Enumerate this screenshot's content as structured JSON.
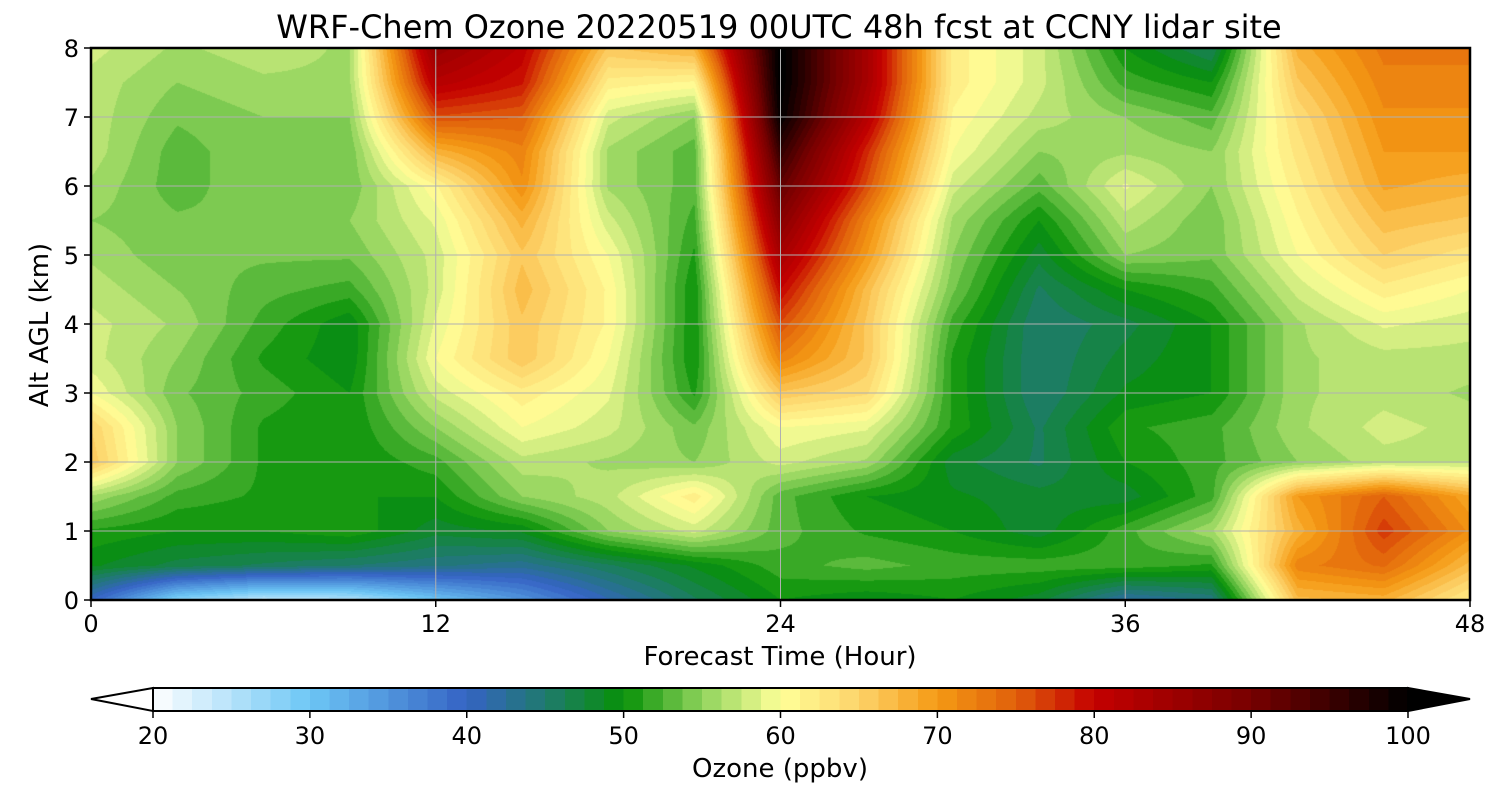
{
  "chart_data": {
    "type": "heatmap",
    "subtype": "filled-contour time-height",
    "title": "WRF-Chem Ozone  20220519 00UTC 48h fcst at CCNY lidar site",
    "xlabel": "Forecast Time (Hour)",
    "ylabel": "Alt AGL (km)",
    "xlim": [
      0,
      48
    ],
    "ylim": [
      0,
      8
    ],
    "x_ticks": [
      0,
      12,
      24,
      36,
      48
    ],
    "y_ticks": [
      0,
      1,
      2,
      3,
      4,
      5,
      6,
      7,
      8
    ],
    "grid": true,
    "colorbar": {
      "label": "Ozone  (ppbv)",
      "range": [
        20,
        100
      ],
      "ticks": [
        20,
        30,
        40,
        50,
        60,
        70,
        80,
        90,
        100
      ],
      "extend": "both",
      "orientation": "horizontal",
      "placement": "bottom",
      "stops": [
        {
          "v": 20,
          "color": "#ffffff"
        },
        {
          "v": 30,
          "color": "#6cc6f5"
        },
        {
          "v": 40,
          "color": "#3563c4"
        },
        {
          "v": 45,
          "color": "#1f7a6e"
        },
        {
          "v": 50,
          "color": "#079107"
        },
        {
          "v": 55,
          "color": "#8fd35c"
        },
        {
          "v": 60,
          "color": "#ffff99"
        },
        {
          "v": 65,
          "color": "#fdd36a"
        },
        {
          "v": 70,
          "color": "#f59a14"
        },
        {
          "v": 75,
          "color": "#e0600b"
        },
        {
          "v": 80,
          "color": "#c40000"
        },
        {
          "v": 90,
          "color": "#770000"
        },
        {
          "v": 100,
          "color": "#000000"
        }
      ]
    },
    "x_hours": [
      0,
      3,
      6,
      9,
      12,
      15,
      18,
      21,
      24,
      27,
      30,
      33,
      36,
      39,
      42,
      45,
      48
    ],
    "y_km": [
      0,
      0.5,
      1,
      1.5,
      2,
      2.5,
      3,
      3.5,
      4,
      4.5,
      5,
      5.5,
      6,
      6.5,
      7,
      7.5,
      8
    ],
    "z_ppbv": [
      [
        40,
        28,
        24,
        25,
        30,
        35,
        41,
        46,
        50,
        49,
        50,
        48,
        42,
        44,
        67,
        68,
        62
      ],
      [
        49,
        47,
        46,
        45,
        44,
        43,
        46,
        49,
        52,
        53,
        52,
        52,
        52,
        51,
        72,
        74,
        67
      ],
      [
        51,
        50,
        50,
        51,
        48,
        49,
        55,
        58,
        53,
        51,
        50,
        48,
        52,
        56,
        68,
        77,
        71
      ],
      [
        56,
        52,
        51,
        50,
        50,
        55,
        57,
        62,
        53,
        50,
        49,
        48,
        48,
        52,
        70,
        75,
        69
      ],
      [
        66,
        55,
        51,
        50,
        52,
        57,
        56,
        55,
        58,
        56,
        48,
        46,
        50,
        52,
        55,
        57,
        57
      ],
      [
        65,
        55,
        51,
        50,
        55,
        60,
        58,
        54,
        60,
        59,
        51,
        46,
        51,
        52,
        56,
        58,
        57
      ],
      [
        60,
        54,
        52,
        50,
        58,
        62,
        59,
        51,
        66,
        64,
        51,
        45,
        49,
        50,
        56,
        57,
        56
      ],
      [
        58,
        55,
        51,
        49,
        60,
        66,
        60,
        50,
        72,
        66,
        51,
        45,
        48,
        50,
        56,
        57,
        57
      ],
      [
        58,
        56,
        52,
        49,
        59,
        66,
        61,
        50,
        76,
        66,
        52,
        45,
        47,
        50,
        56,
        59,
        58
      ],
      [
        57,
        55,
        53,
        52,
        58,
        67,
        61,
        50,
        80,
        67,
        54,
        46,
        50,
        52,
        58,
        62,
        60
      ],
      [
        56,
        54,
        54,
        54,
        58,
        66,
        60,
        51,
        84,
        70,
        55,
        48,
        55,
        54,
        60,
        65,
        63
      ],
      [
        55,
        54,
        54,
        55,
        59,
        68,
        58,
        52,
        88,
        72,
        56,
        50,
        57,
        54,
        61,
        67,
        66
      ],
      [
        56,
        53,
        55,
        54,
        61,
        71,
        56,
        53,
        92,
        76,
        58,
        53,
        59,
        55,
        62,
        69,
        68
      ],
      [
        57,
        53,
        55,
        54,
        68,
        72,
        56,
        53,
        96,
        78,
        60,
        55,
        56,
        55,
        63,
        70,
        70
      ],
      [
        57,
        54,
        55,
        55,
        76,
        75,
        58,
        55,
        100,
        82,
        61,
        57,
        55,
        53,
        64,
        71,
        71
      ],
      [
        57,
        55,
        56,
        56,
        82,
        79,
        62,
        61,
        101,
        84,
        62,
        58,
        52,
        50,
        66,
        72,
        72
      ],
      [
        58,
        56,
        57,
        56,
        86,
        81,
        66,
        68,
        101,
        84,
        62,
        58,
        50,
        46,
        68,
        73,
        73
      ]
    ]
  }
}
